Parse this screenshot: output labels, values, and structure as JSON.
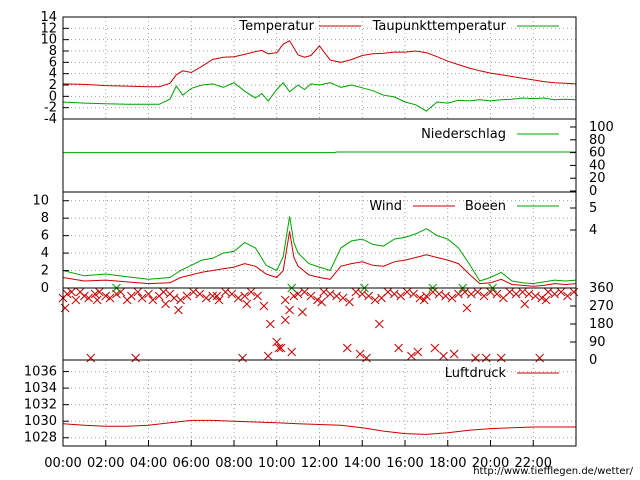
{
  "footer_url": "http://www.tiefflegen.de/wetter/",
  "colors": {
    "red": "#cc0000",
    "green": "#00a000",
    "grid": "#a0a0a0"
  },
  "chart_data": [
    {
      "id": "temperature",
      "type": "line",
      "title": "",
      "ylim": [
        -4,
        14
      ],
      "yticks": [
        "14",
        "12",
        "10",
        "8",
        "6",
        "4",
        "2",
        "0",
        "-2",
        "-4"
      ],
      "grid": true,
      "legend_placement": "top",
      "x_unit": "hours",
      "series": [
        {
          "name": "Temperatur",
          "color": "#cc0000",
          "x": [
            0,
            1,
            2,
            3,
            4,
            4.5,
            5,
            5.3,
            5.6,
            6,
            6.5,
            7,
            7.5,
            8,
            8.5,
            9,
            9.3,
            9.6,
            10,
            10.3,
            10.6,
            11,
            11.3,
            11.6,
            12,
            12.5,
            13,
            13.5,
            14,
            14.5,
            15,
            15.5,
            16,
            16.5,
            17,
            17.5,
            18,
            18.5,
            19,
            19.5,
            20,
            20.5,
            21,
            21.5,
            22,
            22.5,
            23,
            23.5,
            24
          ],
          "values": [
            2.2,
            2.1,
            1.9,
            1.8,
            1.7,
            1.7,
            2.3,
            3.8,
            4.5,
            4.2,
            5.3,
            6.5,
            6.9,
            7.0,
            7.4,
            7.9,
            8.1,
            7.5,
            7.7,
            9.2,
            9.8,
            7.3,
            6.9,
            7.2,
            8.9,
            6.4,
            6.0,
            6.5,
            7.2,
            7.5,
            7.6,
            7.8,
            7.8,
            8.0,
            7.7,
            7.0,
            6.2,
            5.6,
            5.0,
            4.5,
            4.1,
            3.8,
            3.5,
            3.2,
            2.9,
            2.6,
            2.4,
            2.3,
            2.2
          ]
        },
        {
          "name": "Taupunkttemperatur",
          "color": "#00a000",
          "x": [
            0,
            1,
            2,
            3,
            4,
            4.5,
            5,
            5.3,
            5.6,
            6,
            6.5,
            7,
            7.5,
            8,
            8.5,
            9,
            9.3,
            9.6,
            10,
            10.3,
            10.6,
            11,
            11.3,
            11.6,
            12,
            12.5,
            13,
            13.5,
            14,
            14.5,
            15,
            15.5,
            16,
            16.5,
            17,
            17.5,
            18,
            18.5,
            19,
            19.5,
            20,
            20.5,
            21,
            21.5,
            22,
            22.5,
            23,
            23.5,
            24
          ],
          "values": [
            -1.0,
            -1.2,
            -1.3,
            -1.4,
            -1.4,
            -1.4,
            -0.5,
            1.8,
            0.2,
            1.4,
            2.0,
            2.2,
            1.6,
            2.4,
            0.9,
            -0.3,
            0.5,
            -0.8,
            1.2,
            2.4,
            0.8,
            2.0,
            1.2,
            2.2,
            2.0,
            2.4,
            1.6,
            2.0,
            1.5,
            1.0,
            0.2,
            -0.1,
            -1.0,
            -1.5,
            -2.6,
            -1.0,
            -1.2,
            -0.7,
            -0.8,
            -0.6,
            -0.8,
            -0.6,
            -0.5,
            -0.3,
            -0.4,
            -0.3,
            -0.6,
            -0.5,
            -0.6
          ]
        }
      ]
    },
    {
      "id": "precipitation",
      "type": "line",
      "ylim": [
        0,
        100
      ],
      "yticks": [
        "100",
        "80",
        "60",
        "40",
        "20",
        "0"
      ],
      "grid": false,
      "legend_placement": "top-right",
      "series": [
        {
          "name": "Niederschlag",
          "color": "#00a000",
          "x": [
            0,
            12.7,
            12.8,
            24
          ],
          "values": [
            60,
            60,
            61,
            61
          ]
        }
      ]
    },
    {
      "id": "wind",
      "type": "line",
      "ylim": [
        0,
        11
      ],
      "yticks": [
        "10",
        "8",
        "6",
        "4",
        "2",
        "0"
      ],
      "right_ticks": [
        "5",
        "4"
      ],
      "grid": true,
      "legend_placement": "top",
      "series": [
        {
          "name": "Wind",
          "color": "#cc0000",
          "x": [
            0,
            1,
            2,
            3,
            4,
            5,
            5.5,
            6,
            6.5,
            7,
            7.5,
            8,
            8.5,
            9,
            9.5,
            10,
            10.3,
            10.6,
            10.8,
            11,
            11.5,
            12,
            12.5,
            13,
            13.5,
            14,
            14.5,
            15,
            15.5,
            16,
            16.5,
            17,
            17.5,
            18,
            18.5,
            19,
            19.5,
            20,
            20.5,
            21,
            21.5,
            22,
            22.5,
            23,
            23.5,
            24
          ],
          "values": [
            1.2,
            0.8,
            0.9,
            0.7,
            0.5,
            0.6,
            1.2,
            1.5,
            1.8,
            2.0,
            2.2,
            2.4,
            2.8,
            2.5,
            1.6,
            1.2,
            2.0,
            6.5,
            3.5,
            2.5,
            1.5,
            1.2,
            1.0,
            2.5,
            2.8,
            3.0,
            2.6,
            2.5,
            3.0,
            3.2,
            3.5,
            3.8,
            3.5,
            3.2,
            2.8,
            1.6,
            0.5,
            0.6,
            1.0,
            0.4,
            0.3,
            0.2,
            0.3,
            0.5,
            0.4,
            0.5
          ]
        },
        {
          "name": "Boeen",
          "color": "#00a000",
          "x": [
            0,
            1,
            2,
            3,
            4,
            5,
            5.5,
            6,
            6.5,
            7,
            7.5,
            8,
            8.5,
            9,
            9.5,
            10,
            10.3,
            10.6,
            10.8,
            11,
            11.5,
            12,
            12.5,
            13,
            13.5,
            14,
            14.5,
            15,
            15.5,
            16,
            16.5,
            17,
            17.5,
            18,
            18.5,
            19,
            19.5,
            20,
            20.5,
            21,
            21.5,
            22,
            22.5,
            23,
            23.5,
            24
          ],
          "values": [
            2.0,
            1.4,
            1.6,
            1.3,
            1.0,
            1.2,
            2.0,
            2.6,
            3.2,
            3.4,
            4.0,
            4.2,
            5.2,
            4.6,
            2.6,
            2.0,
            3.6,
            8.2,
            5.2,
            4.0,
            2.8,
            2.4,
            2.0,
            4.6,
            5.4,
            5.6,
            5.0,
            4.8,
            5.6,
            5.8,
            6.2,
            6.8,
            6.0,
            5.6,
            4.6,
            2.8,
            0.8,
            1.2,
            1.8,
            0.8,
            0.6,
            0.5,
            0.7,
            0.9,
            0.8,
            0.9
          ]
        }
      ]
    },
    {
      "id": "wind_direction",
      "type": "scatter",
      "ylim": [
        0,
        360
      ],
      "yticks": [
        "360",
        "270",
        "180",
        "90",
        "0"
      ],
      "grid": false,
      "legend_placement": "none",
      "series": [
        {
          "name": "",
          "color": "#cc0000",
          "marker": "x",
          "x": [
            0,
            0.2,
            0.4,
            0.6,
            0.8,
            1.0,
            1.2,
            1.5,
            1.7,
            2.0,
            2.2,
            2.5,
            2.7,
            3.0,
            3.2,
            3.5,
            3.7,
            4.0,
            4.2,
            4.5,
            4.7,
            5.0,
            5.2,
            5.5,
            5.8,
            6.1,
            6.4,
            6.7,
            7.0,
            7.3,
            7.6,
            7.9,
            8.2,
            8.5,
            8.8,
            9.1,
            9.4,
            9.7,
            10.0,
            10.2,
            10.4,
            10.6,
            10.8,
            11.0,
            11.3,
            11.6,
            11.9,
            12.2,
            12.5,
            12.8,
            13.1,
            13.4,
            13.7,
            14.0,
            14.3,
            14.6,
            14.9,
            15.2,
            15.5,
            15.8,
            16.1,
            16.4,
            16.7,
            17.0,
            17.3,
            17.6,
            17.9,
            18.2,
            18.5,
            18.8,
            19.1,
            19.4,
            19.7,
            20.0,
            20.3,
            20.6,
            20.9,
            21.2,
            21.5,
            21.8,
            22.1,
            22.4,
            22.7,
            23.0,
            23.3,
            23.6,
            23.9,
            1.3,
            3.4,
            8.4,
            9.6,
            10.1,
            10.7,
            13.3,
            13.9,
            14.2,
            15.7,
            16.3,
            16.6,
            17.4,
            17.8,
            18.3,
            19.3,
            19.8,
            20.5,
            22.3,
            0.1,
            1.6,
            4.8,
            5.4,
            7.2,
            8.6,
            10.4,
            11.2,
            12.1,
            14.8,
            16.9,
            18.9,
            21.6,
            22.6
          ],
          "values": [
            310,
            330,
            340,
            300,
            340,
            320,
            310,
            330,
            340,
            320,
            310,
            330,
            340,
            300,
            320,
            340,
            310,
            330,
            300,
            320,
            340,
            330,
            310,
            300,
            320,
            340,
            330,
            310,
            320,
            300,
            340,
            330,
            310,
            320,
            340,
            320,
            270,
            180,
            90,
            60,
            300,
            250,
            320,
            330,
            340,
            320,
            300,
            340,
            330,
            320,
            310,
            290,
            340,
            330,
            320,
            300,
            310,
            340,
            330,
            320,
            340,
            330,
            310,
            320,
            340,
            330,
            320,
            310,
            330,
            340,
            330,
            340,
            320,
            340,
            330,
            310,
            340,
            330,
            340,
            330,
            320,
            310,
            340,
            330,
            340,
            320,
            340,
            10,
            10,
            10,
            20,
            60,
            40,
            60,
            30,
            10,
            60,
            20,
            40,
            60,
            20,
            30,
            10,
            10,
            10,
            10,
            260,
            300,
            280,
            250,
            320,
            280,
            200,
            240,
            290,
            180,
            300,
            260,
            280,
            300
          ]
        },
        {
          "name": "",
          "color": "#00a000",
          "marker": "x",
          "x": [
            2.5,
            10.7,
            14.1,
            17.3,
            18.7,
            20.1
          ],
          "values": [
            360,
            360,
            360,
            360,
            360,
            360
          ]
        }
      ]
    },
    {
      "id": "pressure",
      "type": "line",
      "ylim": [
        1027,
        1037.4
      ],
      "yticks": [
        "1036",
        "1034",
        "1032",
        "1030",
        "1028"
      ],
      "xticks": [
        "00:00",
        "02:00",
        "04:00",
        "06:00",
        "08:00",
        "10:00",
        "12:00",
        "14:00",
        "16:00",
        "18:00",
        "20:00",
        "22:00"
      ],
      "grid": true,
      "legend_placement": "top-right",
      "series": [
        {
          "name": "Luftdruck",
          "color": "#cc0000",
          "x": [
            0,
            1,
            2,
            3,
            4,
            5,
            6,
            7,
            8,
            9,
            10,
            11,
            12,
            13,
            14,
            15,
            16,
            17,
            18,
            19,
            20,
            21,
            22,
            23,
            24
          ],
          "values": [
            1029.7,
            1029.5,
            1029.4,
            1029.4,
            1029.5,
            1029.8,
            1030.1,
            1030.1,
            1030.0,
            1029.9,
            1029.8,
            1029.7,
            1029.6,
            1029.5,
            1029.2,
            1028.8,
            1028.5,
            1028.4,
            1028.6,
            1028.9,
            1029.1,
            1029.2,
            1029.3,
            1029.3,
            1029.3
          ]
        }
      ]
    }
  ]
}
